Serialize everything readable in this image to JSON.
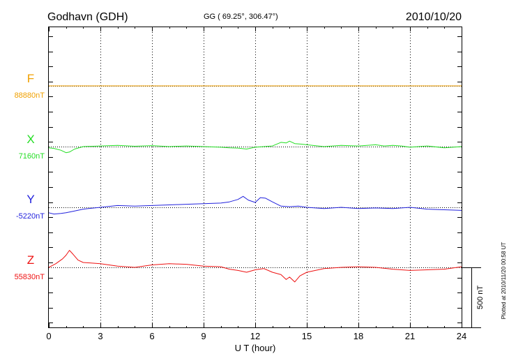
{
  "header": {
    "station": "Godhavn (GDH)",
    "coords": "GG ( 69.25°, 306.47°)",
    "date": "2010/10/20"
  },
  "footer": {
    "plotted": "Plotted at 2010/11/20 00:58 UT"
  },
  "chart_data": {
    "type": "line",
    "xlabel": "U T (hour)",
    "xlim": [
      0,
      24
    ],
    "xticks": [
      "0",
      "3",
      "6",
      "9",
      "12",
      "15",
      "18",
      "21",
      "24"
    ],
    "grid": "dotted vertical lines every 3 hours",
    "scale_bar": {
      "label": "500 nT",
      "value_nT": 500
    },
    "series": [
      {
        "name": "F",
        "baseline_label": "88880nT",
        "baseline_nT": 88880,
        "color": "#f0a000",
        "x": [
          0,
          24
        ],
        "y": [
          0,
          0
        ]
      },
      {
        "name": "X",
        "baseline_label": "7160nT",
        "baseline_nT": 7160,
        "color": "#22dd22",
        "x": [
          0,
          0.3,
          0.7,
          1.0,
          1.2,
          1.5,
          2.0,
          3.0,
          4.0,
          5.0,
          6.0,
          7.0,
          8.0,
          9.0,
          10.0,
          10.5,
          11.0,
          11.5,
          12.0,
          12.5,
          13.0,
          13.5,
          13.8,
          14.0,
          14.3,
          14.7,
          15.0,
          16.0,
          17.0,
          18.0,
          19.0,
          19.5,
          20.0,
          20.5,
          21.0,
          22.0,
          23.0,
          24.0
        ],
        "y": [
          -10,
          -15,
          -30,
          -50,
          -45,
          -20,
          0,
          5,
          10,
          3,
          8,
          0,
          5,
          0,
          -5,
          -10,
          -12,
          -20,
          -5,
          0,
          5,
          35,
          30,
          45,
          25,
          20,
          15,
          0,
          10,
          5,
          15,
          5,
          10,
          5,
          -5,
          5,
          -10,
          0
        ]
      },
      {
        "name": "Y",
        "baseline_label": "-5220nT",
        "baseline_nT": -5220,
        "color": "#2222dd",
        "x": [
          0,
          0.3,
          0.7,
          1.0,
          1.5,
          2.0,
          3.0,
          4.0,
          5.0,
          6.0,
          7.0,
          8.0,
          9.0,
          10.0,
          10.5,
          11.0,
          11.3,
          11.6,
          12.0,
          12.3,
          12.6,
          13.0,
          13.5,
          14.0,
          14.5,
          15.0,
          16.0,
          17.0,
          18.0,
          19.0,
          20.0,
          21.0,
          22.0,
          23.0,
          24.0
        ],
        "y": [
          -45,
          -55,
          -50,
          -45,
          -30,
          -15,
          0,
          15,
          10,
          15,
          20,
          25,
          30,
          35,
          45,
          65,
          90,
          60,
          40,
          80,
          75,
          45,
          10,
          5,
          10,
          0,
          -10,
          0,
          -10,
          -5,
          -10,
          0,
          -15,
          -20,
          -25
        ]
      },
      {
        "name": "Z",
        "baseline_label": "55830nT",
        "baseline_nT": 55830,
        "color": "#ee1111",
        "x": [
          0,
          0.4,
          0.8,
          1.0,
          1.2,
          1.4,
          1.7,
          2.0,
          3.0,
          4.0,
          5.0,
          6.0,
          7.0,
          8.0,
          9.0,
          10.0,
          10.5,
          11.0,
          11.5,
          12.0,
          12.5,
          13.0,
          13.5,
          13.8,
          14.0,
          14.3,
          14.6,
          15.0,
          16.0,
          17.0,
          18.0,
          19.0,
          20.0,
          21.0,
          22.0,
          23.0,
          24.0
        ],
        "y": [
          0,
          30,
          70,
          100,
          140,
          110,
          60,
          40,
          30,
          10,
          0,
          20,
          30,
          25,
          10,
          5,
          -15,
          -25,
          -40,
          -20,
          -10,
          -40,
          -60,
          -100,
          -80,
          -120,
          -70,
          -40,
          -10,
          0,
          5,
          0,
          -15,
          -25,
          -20,
          -15,
          5
        ]
      }
    ]
  }
}
